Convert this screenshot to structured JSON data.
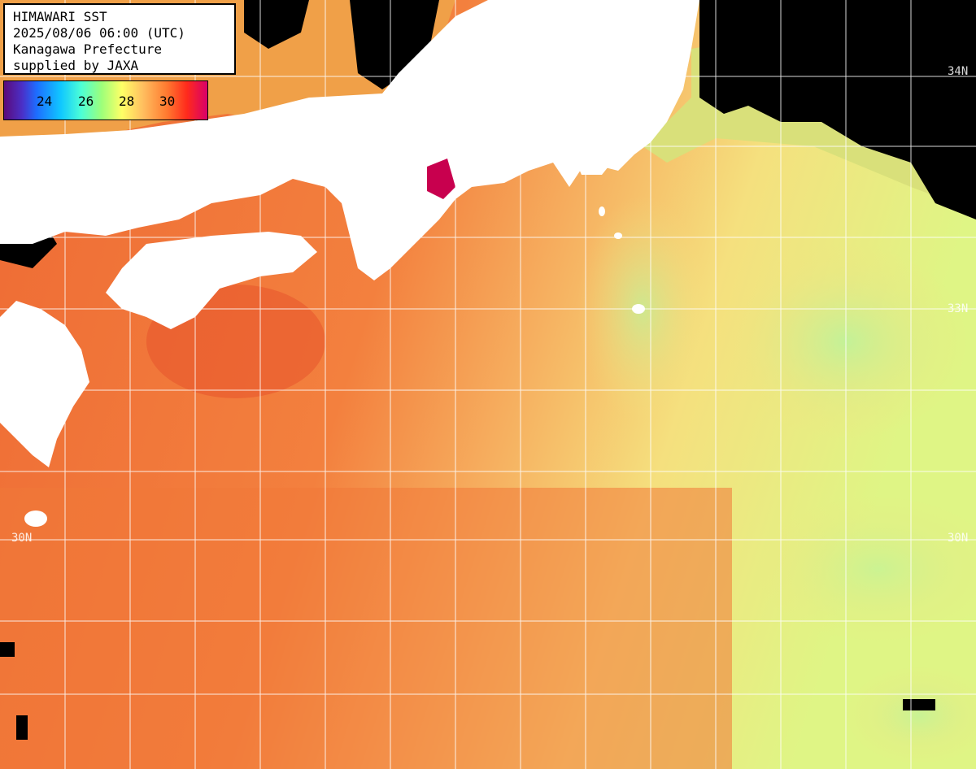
{
  "info": {
    "title": "HIMAWARI SST",
    "datetime": "2025/08/06 06:00 (UTC)",
    "region": "Kanagawa Prefecture",
    "credit": "supplied by JAXA"
  },
  "colorbar": {
    "labels": [
      "24",
      "26",
      "28",
      "30"
    ],
    "colors": [
      "#5b0a7a",
      "#1d6dff",
      "#10c8ff",
      "#9dff7a",
      "#ffff66",
      "#ff7a30",
      "#ff2a1c",
      "#d8006a"
    ]
  },
  "lat_labels": {
    "n34_right": "34N",
    "n33_right": "33N",
    "n30_left": "30N",
    "n30_right": "30N"
  },
  "colors": {
    "land": "#ffffff",
    "cloud": "#000000",
    "sea_warm": "#f27a3a",
    "sea_cool": "#f5e98a",
    "sea_cold": "#b9f08a",
    "grid": "#ffffff"
  }
}
